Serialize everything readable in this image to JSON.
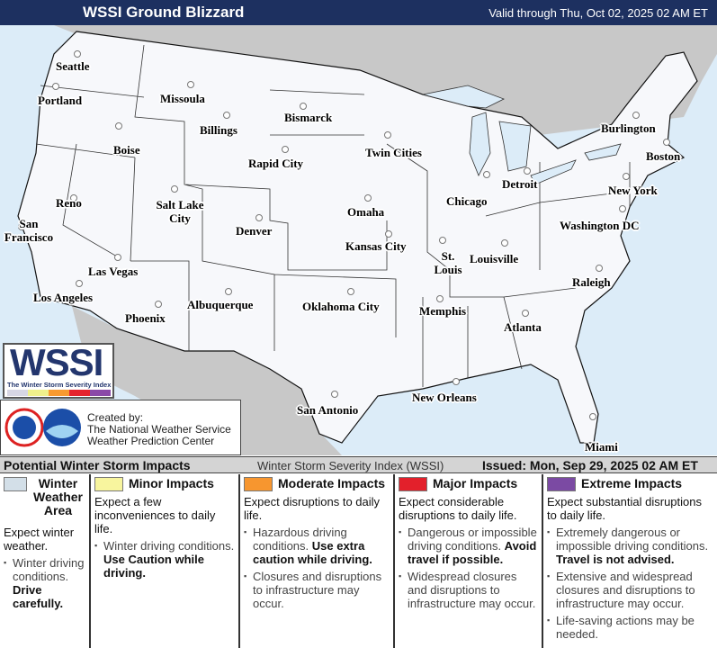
{
  "header": {
    "title": "WSSI Ground Blizzard",
    "valid": "Valid through Thu, Oct 02, 2025 02 AM ET"
  },
  "map": {
    "cities": [
      "Seattle",
      "Portland",
      "Missoula",
      "Boise",
      "Billings",
      "Bismarck",
      "Rapid City",
      "Twin Cities",
      "Burlington",
      "Boston",
      "Detroit",
      "Chicago",
      "New York",
      "Reno",
      "Salt Lake City",
      "Denver",
      "Omaha",
      "Washington DC",
      "San Francisco",
      "Kansas City",
      "St. Louis",
      "Louisville",
      "Las Vegas",
      "Raleigh",
      "Los Angeles",
      "Albuquerque",
      "Oklahoma City",
      "Memphis",
      "Phoenix",
      "Atlanta",
      "San Antonio",
      "New Orleans",
      "Miami"
    ],
    "colors": {
      "ocean": "#dcecf8",
      "land_us": "#f7f8fb",
      "land_other": "#c8c8c8"
    }
  },
  "logo": {
    "text": "WSSI",
    "subtitle": "The Winter Storm Severity Index",
    "colors": [
      "#d6d6e4",
      "#eef08c",
      "#f79a30",
      "#e4232e",
      "#8a4aa8"
    ]
  },
  "credit": {
    "line1": "Created by:",
    "line2": "The National Weather Service",
    "line3": "Weather Prediction Center"
  },
  "legend": {
    "title": "Potential Winter Storm Impacts",
    "index": "Winter Storm Severity Index (WSSI)",
    "issued": "Issued: Mon, Sep 29, 2025 02 AM ET",
    "columns": [
      {
        "label": "Winter Weather Area",
        "color": "#d3dfe8",
        "expect": "Expect winter weather.",
        "bullets": [
          {
            "text": "Winter driving conditions. ",
            "bold": "Drive carefully."
          }
        ]
      },
      {
        "label": "Minor Impacts",
        "color": "#f8f59e",
        "expect": "Expect a few inconveniences to daily life.",
        "bullets": [
          {
            "text": "Winter driving conditions. ",
            "bold": "Use Caution while driving."
          }
        ]
      },
      {
        "label": "Moderate Impacts",
        "color": "#f7962f",
        "expect": "Expect disruptions to daily life.",
        "bullets": [
          {
            "text": "Hazardous driving conditions. ",
            "bold": "Use extra caution while driving."
          },
          {
            "text": "Closures and disruptions to infrastructure may occur.",
            "bold": ""
          }
        ]
      },
      {
        "label": "Major Impacts",
        "color": "#e3202b",
        "expect": "Expect considerable disruptions to daily life.",
        "bullets": [
          {
            "text": "Dangerous or impossible driving conditions. ",
            "bold": "Avoid travel if possible."
          },
          {
            "text": "Widespread closures and disruptions to infrastructure may occur.",
            "bold": ""
          }
        ]
      },
      {
        "label": "Extreme Impacts",
        "color": "#7b4aa3",
        "expect": "Expect substantial disruptions to daily life.",
        "bullets": [
          {
            "text": "Extremely dangerous or impossible driving conditions. ",
            "bold": "Travel is not advised."
          },
          {
            "text": "Extensive and widespread closures and disruptions to infrastructure may occur.",
            "bold": ""
          },
          {
            "text": "Life-saving actions may be needed.",
            "bold": ""
          }
        ]
      }
    ]
  }
}
